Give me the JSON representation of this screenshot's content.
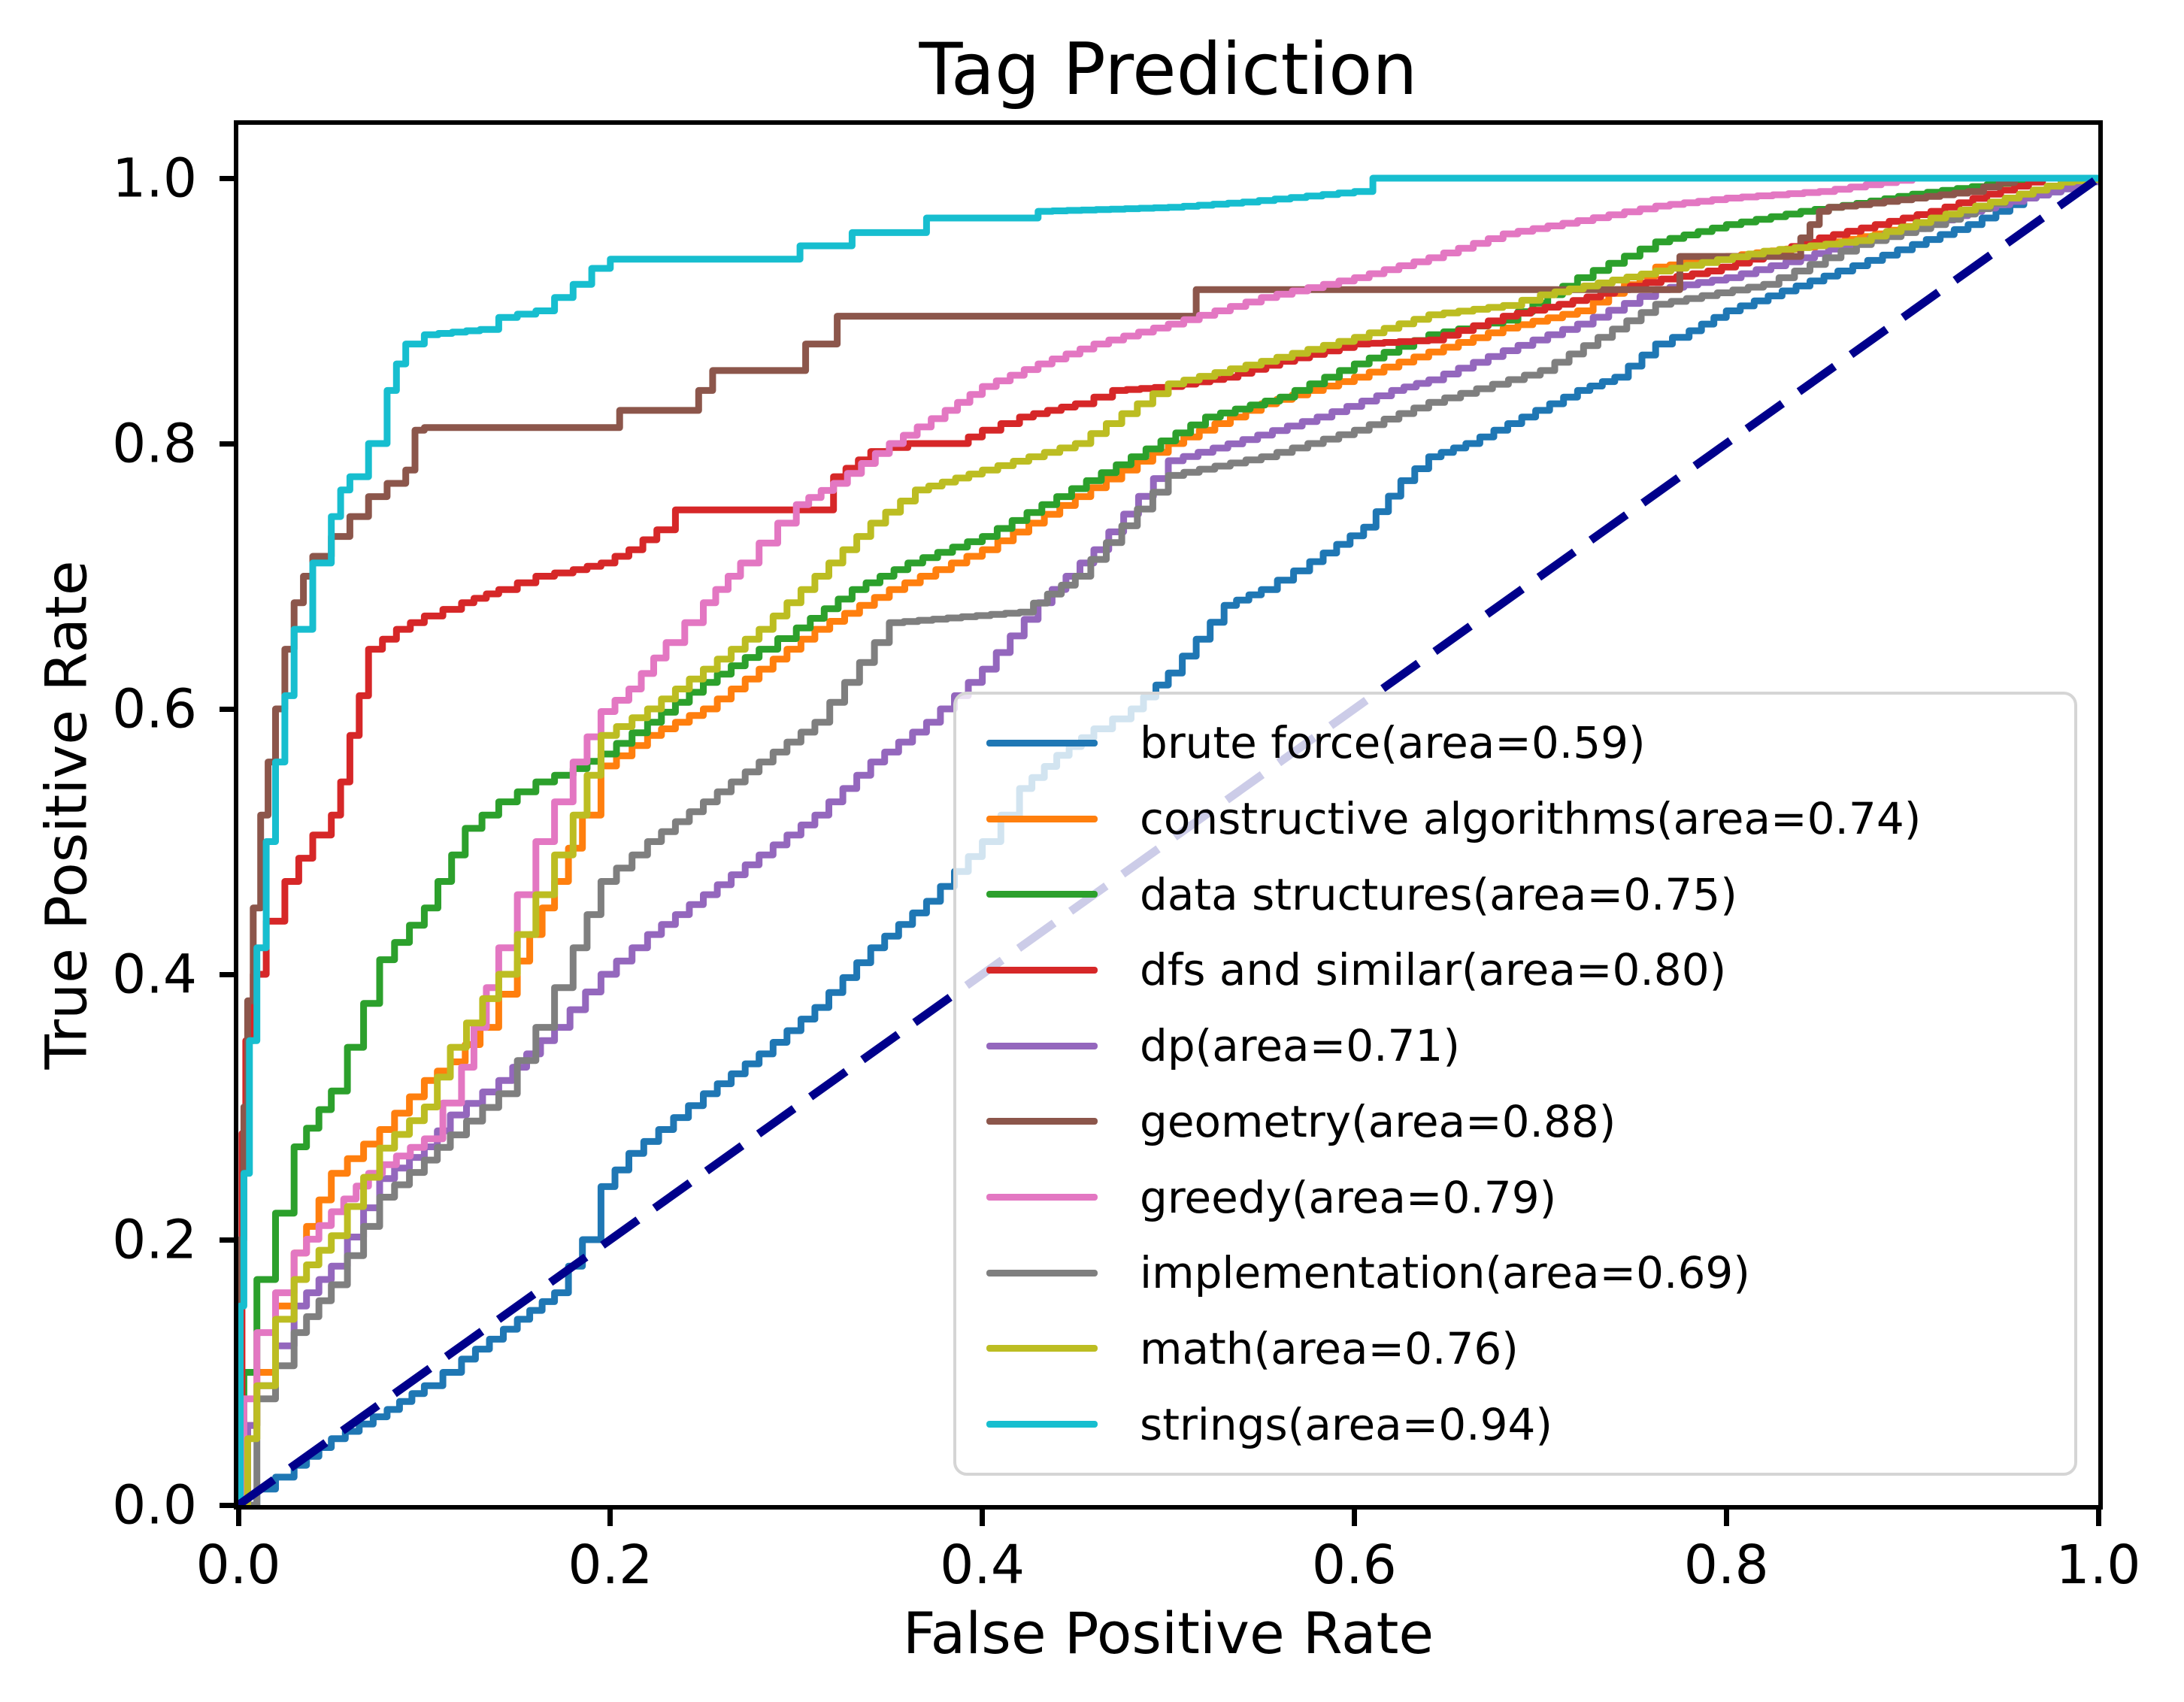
{
  "chart_data": {
    "type": "line",
    "title": "Tag Prediction",
    "xlabel": "False Positive Rate",
    "ylabel": "True Positive Rate",
    "xlim": [
      0,
      1
    ],
    "ylim": [
      0,
      1.04
    ],
    "grid": "off",
    "legend_position": "lower right",
    "x_ticks": {
      "values": [
        0,
        0.2,
        0.4,
        0.6,
        0.8,
        1.0
      ],
      "labels": [
        "0.0",
        "0.2",
        "0.4",
        "0.6",
        "0.8",
        "1.0"
      ]
    },
    "y_ticks": {
      "values": [
        0,
        0.2,
        0.4,
        0.6,
        0.8,
        1.0
      ],
      "labels": [
        "0.0",
        "0.2",
        "0.4",
        "0.6",
        "0.8",
        "1.0"
      ]
    },
    "diagonal": {
      "style": "dashed",
      "color": "#00008b",
      "x": [
        0,
        1
      ],
      "y": [
        0,
        1
      ]
    },
    "series": [
      {
        "name": "brute force",
        "auc": "0.59",
        "label": "brute force(area=0.59)",
        "color": "#1f77b4",
        "x": [
          0,
          0.01,
          0.03,
          0.05,
          0.08,
          0.1,
          0.12,
          0.15,
          0.17,
          0.185,
          0.195,
          0.21,
          0.25,
          0.28,
          0.31,
          0.34,
          0.37,
          0.4,
          0.42,
          0.44,
          0.46,
          0.48,
          0.5,
          0.53,
          0.55,
          0.576,
          0.605,
          0.625,
          0.64,
          0.66,
          0.69,
          0.72,
          0.74,
          0.762,
          0.78,
          0.8,
          0.83,
          0.86,
          0.9,
          0.93,
          0.96,
          0.98,
          1
        ],
        "y": [
          0,
          0.012,
          0.03,
          0.05,
          0.072,
          0.09,
          0.11,
          0.14,
          0.16,
          0.2,
          0.24,
          0.265,
          0.31,
          0.34,
          0.375,
          0.42,
          0.455,
          0.5,
          0.54,
          0.565,
          0.585,
          0.6,
          0.627,
          0.678,
          0.69,
          0.711,
          0.737,
          0.772,
          0.79,
          0.8,
          0.82,
          0.84,
          0.85,
          0.875,
          0.885,
          0.9,
          0.915,
          0.93,
          0.95,
          0.965,
          0.985,
          0.992,
          1
        ]
      },
      {
        "name": "constructive algorithms",
        "auc": "0.74",
        "label": "constructive algorithms(area=0.74)",
        "color": "#ff7f0e",
        "x": [
          0,
          0.005,
          0.01,
          0.02,
          0.03,
          0.05,
          0.076,
          0.1,
          0.114,
          0.13,
          0.15,
          0.17,
          0.185,
          0.195,
          0.22,
          0.25,
          0.28,
          0.31,
          0.35,
          0.4,
          0.45,
          0.5,
          0.55,
          0.6,
          0.64,
          0.68,
          0.72,
          0.762,
          0.8,
          0.84,
          0.88,
          0.92,
          0.95,
          0.98,
          1
        ],
        "y": [
          0,
          0.06,
          0.1,
          0.15,
          0.19,
          0.25,
          0.283,
          0.32,
          0.334,
          0.36,
          0.41,
          0.47,
          0.52,
          0.557,
          0.58,
          0.6,
          0.63,
          0.66,
          0.69,
          0.72,
          0.76,
          0.8,
          0.83,
          0.85,
          0.869,
          0.887,
          0.9,
          0.933,
          0.941,
          0.948,
          0.958,
          0.972,
          0.985,
          0.997,
          1
        ]
      },
      {
        "name": "data structures",
        "auc": "0.75",
        "label": "data structures(area=0.75)",
        "color": "#2ca02c",
        "x": [
          0,
          0.003,
          0.01,
          0.02,
          0.03,
          0.05,
          0.076,
          0.1,
          0.122,
          0.14,
          0.16,
          0.18,
          0.195,
          0.22,
          0.25,
          0.28,
          0.3,
          0.33,
          0.36,
          0.4,
          0.44,
          0.48,
          0.52,
          0.56,
          0.6,
          0.64,
          0.68,
          0.72,
          0.762,
          0.8,
          0.84,
          0.87,
          0.9,
          0.94,
          0.97,
          1
        ],
        "y": [
          0,
          0.1,
          0.17,
          0.22,
          0.27,
          0.312,
          0.411,
          0.45,
          0.51,
          0.53,
          0.545,
          0.555,
          0.566,
          0.59,
          0.62,
          0.645,
          0.661,
          0.69,
          0.71,
          0.73,
          0.76,
          0.79,
          0.82,
          0.835,
          0.86,
          0.882,
          0.893,
          0.925,
          0.952,
          0.965,
          0.975,
          0.981,
          0.988,
          0.995,
          1,
          1
        ]
      },
      {
        "name": "dfs and similar",
        "auc": "0.80",
        "label": "dfs and similar(area=0.80)",
        "color": "#d62728",
        "x": [
          0,
          0.002,
          0.004,
          0.008,
          0.015,
          0.025,
          0.04,
          0.05,
          0.055,
          0.06,
          0.065,
          0.07,
          0.085,
          0.1,
          0.12,
          0.14,
          0.16,
          0.18,
          0.195,
          0.21,
          0.225,
          0.235,
          0.31,
          0.32,
          0.34,
          0.36,
          0.385,
          0.4,
          0.42,
          0.45,
          0.47,
          0.5,
          0.53,
          0.56,
          0.6,
          0.64,
          0.68,
          0.71,
          0.74,
          0.765,
          0.79,
          0.82,
          0.85,
          0.88,
          0.91,
          0.94,
          0.97,
          1
        ],
        "y": [
          0,
          0.28,
          0.35,
          0.4,
          0.44,
          0.47,
          0.505,
          0.52,
          0.545,
          0.58,
          0.61,
          0.645,
          0.66,
          0.67,
          0.68,
          0.69,
          0.7,
          0.705,
          0.71,
          0.72,
          0.735,
          0.75,
          0.75,
          0.775,
          0.794,
          0.8,
          0.8,
          0.81,
          0.82,
          0.83,
          0.84,
          0.843,
          0.85,
          0.862,
          0.875,
          0.878,
          0.896,
          0.905,
          0.916,
          0.924,
          0.93,
          0.942,
          0.955,
          0.965,
          0.975,
          0.988,
          1,
          1
        ]
      },
      {
        "name": "dp",
        "auc": "0.71",
        "label": "dp(area=0.71)",
        "color": "#9467bd",
        "x": [
          0,
          0.005,
          0.01,
          0.02,
          0.03,
          0.05,
          0.076,
          0.1,
          0.114,
          0.14,
          0.17,
          0.195,
          0.22,
          0.25,
          0.28,
          0.31,
          0.34,
          0.37,
          0.4,
          0.43,
          0.46,
          0.5,
          0.54,
          0.58,
          0.62,
          0.64,
          0.68,
          0.72,
          0.762,
          0.8,
          0.84,
          0.87,
          0.9,
          0.93,
          0.96,
          0.98,
          1
        ],
        "y": [
          0,
          0.06,
          0.09,
          0.12,
          0.15,
          0.18,
          0.246,
          0.27,
          0.294,
          0.32,
          0.36,
          0.4,
          0.43,
          0.46,
          0.49,
          0.52,
          0.56,
          0.59,
          0.63,
          0.68,
          0.72,
          0.787,
          0.803,
          0.82,
          0.84,
          0.848,
          0.87,
          0.89,
          0.916,
          0.925,
          0.94,
          0.953,
          0.962,
          0.975,
          0.985,
          0.992,
          1
        ]
      },
      {
        "name": "geometry",
        "auc": "0.88",
        "label": "geometry(area=0.88)",
        "color": "#8c564b",
        "x": [
          0,
          0.001,
          0.003,
          0.005,
          0.008,
          0.012,
          0.016,
          0.02,
          0.025,
          0.03,
          0.035,
          0.04,
          0.05,
          0.06,
          0.07,
          0.08,
          0.09,
          0.095,
          0.1,
          0.195,
          0.205,
          0.24,
          0.255,
          0.3,
          0.305,
          0.318,
          0.322,
          0.51,
          0.515,
          0.77,
          0.775,
          0.835,
          0.84,
          0.845,
          0.85,
          0.855,
          0.87,
          0.9,
          0.93,
          0.955,
          1
        ],
        "y": [
          0,
          0.2,
          0.3,
          0.38,
          0.45,
          0.52,
          0.56,
          0.6,
          0.645,
          0.68,
          0.7,
          0.715,
          0.73,
          0.745,
          0.76,
          0.77,
          0.78,
          0.81,
          0.812,
          0.812,
          0.825,
          0.825,
          0.855,
          0.855,
          0.875,
          0.875,
          0.896,
          0.896,
          0.916,
          0.916,
          0.941,
          0.941,
          0.955,
          0.965,
          0.975,
          0.978,
          0.98,
          0.985,
          0.99,
          1,
          1
        ]
      },
      {
        "name": "greedy",
        "auc": "0.79",
        "label": "greedy(area=0.79)",
        "color": "#e377c2",
        "x": [
          0,
          0.003,
          0.01,
          0.02,
          0.03,
          0.05,
          0.07,
          0.1,
          0.12,
          0.14,
          0.16,
          0.18,
          0.195,
          0.21,
          0.23,
          0.25,
          0.27,
          0.29,
          0.3,
          0.32,
          0.35,
          0.38,
          0.4,
          0.43,
          0.46,
          0.5,
          0.55,
          0.6,
          0.64,
          0.68,
          0.72,
          0.762,
          0.8,
          0.85,
          0.9,
          1
        ],
        "y": [
          0,
          0.08,
          0.13,
          0.16,
          0.19,
          0.221,
          0.25,
          0.276,
          0.33,
          0.42,
          0.5,
          0.56,
          0.598,
          0.615,
          0.65,
          0.68,
          0.71,
          0.74,
          0.754,
          0.77,
          0.8,
          0.825,
          0.843,
          0.86,
          0.875,
          0.89,
          0.91,
          0.925,
          0.94,
          0.958,
          0.968,
          0.979,
          0.985,
          0.99,
          1,
          1
        ]
      },
      {
        "name": "implementation",
        "auc": "0.69",
        "label": "implementation(area=0.69)",
        "color": "#7f7f7f",
        "x": [
          0,
          0.01,
          0.03,
          0.05,
          0.076,
          0.1,
          0.114,
          0.14,
          0.16,
          0.18,
          0.195,
          0.22,
          0.25,
          0.28,
          0.31,
          0.35,
          0.42,
          0.45,
          0.5,
          0.55,
          0.6,
          0.64,
          0.7,
          0.762,
          0.82,
          0.87,
          0.91,
          0.95,
          0.98,
          1
        ],
        "y": [
          0,
          0.08,
          0.13,
          0.166,
          0.232,
          0.26,
          0.279,
          0.31,
          0.36,
          0.42,
          0.47,
          0.5,
          0.53,
          0.56,
          0.59,
          0.665,
          0.673,
          0.7,
          0.776,
          0.79,
          0.81,
          0.831,
          0.855,
          0.905,
          0.92,
          0.95,
          0.965,
          0.985,
          0.997,
          1
        ]
      },
      {
        "name": "math",
        "auc": "0.76",
        "label": "math(area=0.76)",
        "color": "#bcbd22",
        "x": [
          0,
          0.005,
          0.01,
          0.02,
          0.03,
          0.05,
          0.076,
          0.1,
          0.114,
          0.14,
          0.16,
          0.18,
          0.195,
          0.22,
          0.25,
          0.28,
          0.31,
          0.34,
          0.364,
          0.4,
          0.45,
          0.5,
          0.55,
          0.6,
          0.64,
          0.68,
          0.7,
          0.762,
          0.82,
          0.87,
          0.91,
          0.95,
          0.98,
          1
        ],
        "y": [
          0,
          0.05,
          0.09,
          0.14,
          0.17,
          0.203,
          0.269,
          0.3,
          0.345,
          0.4,
          0.46,
          0.52,
          0.58,
          0.6,
          0.63,
          0.66,
          0.7,
          0.74,
          0.765,
          0.78,
          0.8,
          0.845,
          0.862,
          0.88,
          0.897,
          0.904,
          0.912,
          0.93,
          0.945,
          0.953,
          0.97,
          0.985,
          0.997,
          1
        ]
      },
      {
        "name": "strings",
        "auc": "0.94",
        "label": "strings(area=0.94)",
        "color": "#17becf",
        "x": [
          0,
          0.001,
          0.003,
          0.006,
          0.01,
          0.015,
          0.02,
          0.025,
          0.03,
          0.04,
          0.05,
          0.055,
          0.06,
          0.07,
          0.08,
          0.085,
          0.09,
          0.1,
          0.13,
          0.14,
          0.16,
          0.17,
          0.18,
          0.19,
          0.2,
          0.3,
          0.302,
          0.328,
          0.33,
          0.366,
          0.37,
          0.42,
          0.43,
          0.5,
          0.54,
          0.6,
          0.61,
          1
        ],
        "y": [
          0,
          0.15,
          0.25,
          0.35,
          0.42,
          0.5,
          0.56,
          0.61,
          0.66,
          0.71,
          0.745,
          0.765,
          0.775,
          0.8,
          0.84,
          0.86,
          0.875,
          0.882,
          0.886,
          0.895,
          0.9,
          0.91,
          0.92,
          0.932,
          0.939,
          0.939,
          0.949,
          0.949,
          0.959,
          0.959,
          0.97,
          0.97,
          0.975,
          0.978,
          0.982,
          0.99,
          1,
          1
        ]
      }
    ]
  }
}
